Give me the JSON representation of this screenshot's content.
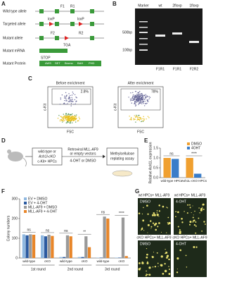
{
  "panel_labels": [
    "A",
    "B",
    "C",
    "D",
    "E",
    "F",
    "G"
  ],
  "panel_a": {
    "rows": [
      "Wild type allele",
      "Targeted allele",
      "Mutant allele",
      "Mutant mRNA",
      "Mutant Protein"
    ],
    "primers": [
      "F1",
      "R1",
      "F2",
      "R2"
    ],
    "loxp": [
      "loxP",
      "loxP"
    ],
    "stop_codon": "TGA",
    "stop": "STOP",
    "domains": [
      "AWS",
      "SET",
      "Bromo",
      "BAH",
      "PHD"
    ]
  },
  "panel_b": {
    "lanes": [
      "Marker",
      "wt",
      "2floxp",
      "1floxp"
    ],
    "sizes": [
      "500bp",
      "100bp"
    ],
    "primer_pairs": [
      "F1R1",
      "F1R1",
      "F2R2"
    ]
  },
  "panel_c": {
    "plots": [
      {
        "title": "Before enrichment",
        "gate": "2.8%"
      },
      {
        "title": "After enrichment",
        "gate": "78%"
      }
    ],
    "y_label": "c-Kit",
    "x_label": "FSC"
  },
  "panel_d": {
    "cells": [
      "wild-type or",
      "Ash1l-cKO",
      "c-Kit+ HPCs"
    ],
    "vectors": [
      "Retroviral MLL-AF9",
      "or empty vectors"
    ],
    "treatment": "4-OHT or DMSO",
    "assay": [
      "Methylcellulose",
      "replating assay"
    ]
  },
  "panel_g": {
    "images": [
      {
        "header": "wt HPCs+ MLL-AF9",
        "treatment": "DMSO"
      },
      {
        "header": "wt HPCs+ MLL-AF9",
        "treatment": "4-OHT"
      },
      {
        "header": "cKO HPCs+ MLL-AF9",
        "treatment": "DMSO"
      },
      {
        "header": "cKO HPCs+ MLL-AF9",
        "treatment": "4-OHT"
      }
    ]
  },
  "chart_data": [
    {
      "type": "bar",
      "y_label": "Relative Ash1L expression",
      "categories": [
        "wild-type HPCs",
        "Ash1L-cKO HPCs"
      ],
      "series": [
        {
          "name": "DMSO",
          "color": "#f0a030",
          "values": [
            1.0,
            1.0
          ]
        },
        {
          "name": "4OHT",
          "color": "#3a7dc9",
          "values": [
            0.95,
            0.2
          ]
        }
      ],
      "annotations": [
        "ns",
        "****"
      ],
      "ylim": [
        0,
        1.5
      ],
      "yticks": [
        {
          "value": 0,
          "label": "0.0"
        },
        {
          "value": 0.5,
          "label": "0.5"
        },
        {
          "value": 1,
          "label": "1.0"
        },
        {
          "value": 1.5,
          "label": "1.5"
        }
      ],
      "legend": "top-right"
    },
    {
      "type": "bar",
      "y_label": "Colony numbers",
      "categories": [
        "wild-type",
        "cKO",
        "wild-type",
        "cKO",
        "wild-type",
        "cKO"
      ],
      "groups": [
        "1st round",
        "2nd round",
        "3rd round"
      ],
      "series": [
        {
          "name": "EV + DMSO",
          "color": "#8fb8e0",
          "values": [
            120,
            115,
            5,
            5,
            2,
            2
          ]
        },
        {
          "name": "EV + 4-OHT",
          "color": "#2b5aa0",
          "values": [
            115,
            110,
            5,
            5,
            2,
            2
          ]
        },
        {
          "name": "MLL-AF9 + DMSO",
          "color": "#9a9a9a",
          "values": [
            120,
            118,
            115,
            110,
            210,
            205
          ]
        },
        {
          "name": "MLL-AF9 + 4-OHT",
          "color": "#e8862a",
          "values": [
            118,
            112,
            110,
            55,
            200,
            10
          ]
        }
      ],
      "annotations": [
        "ns",
        "ns",
        "ns",
        "**",
        "ns",
        "****"
      ],
      "ylim": [
        0,
        300
      ],
      "yticks": [
        0,
        100,
        200,
        300
      ],
      "legend": "top-left"
    }
  ]
}
